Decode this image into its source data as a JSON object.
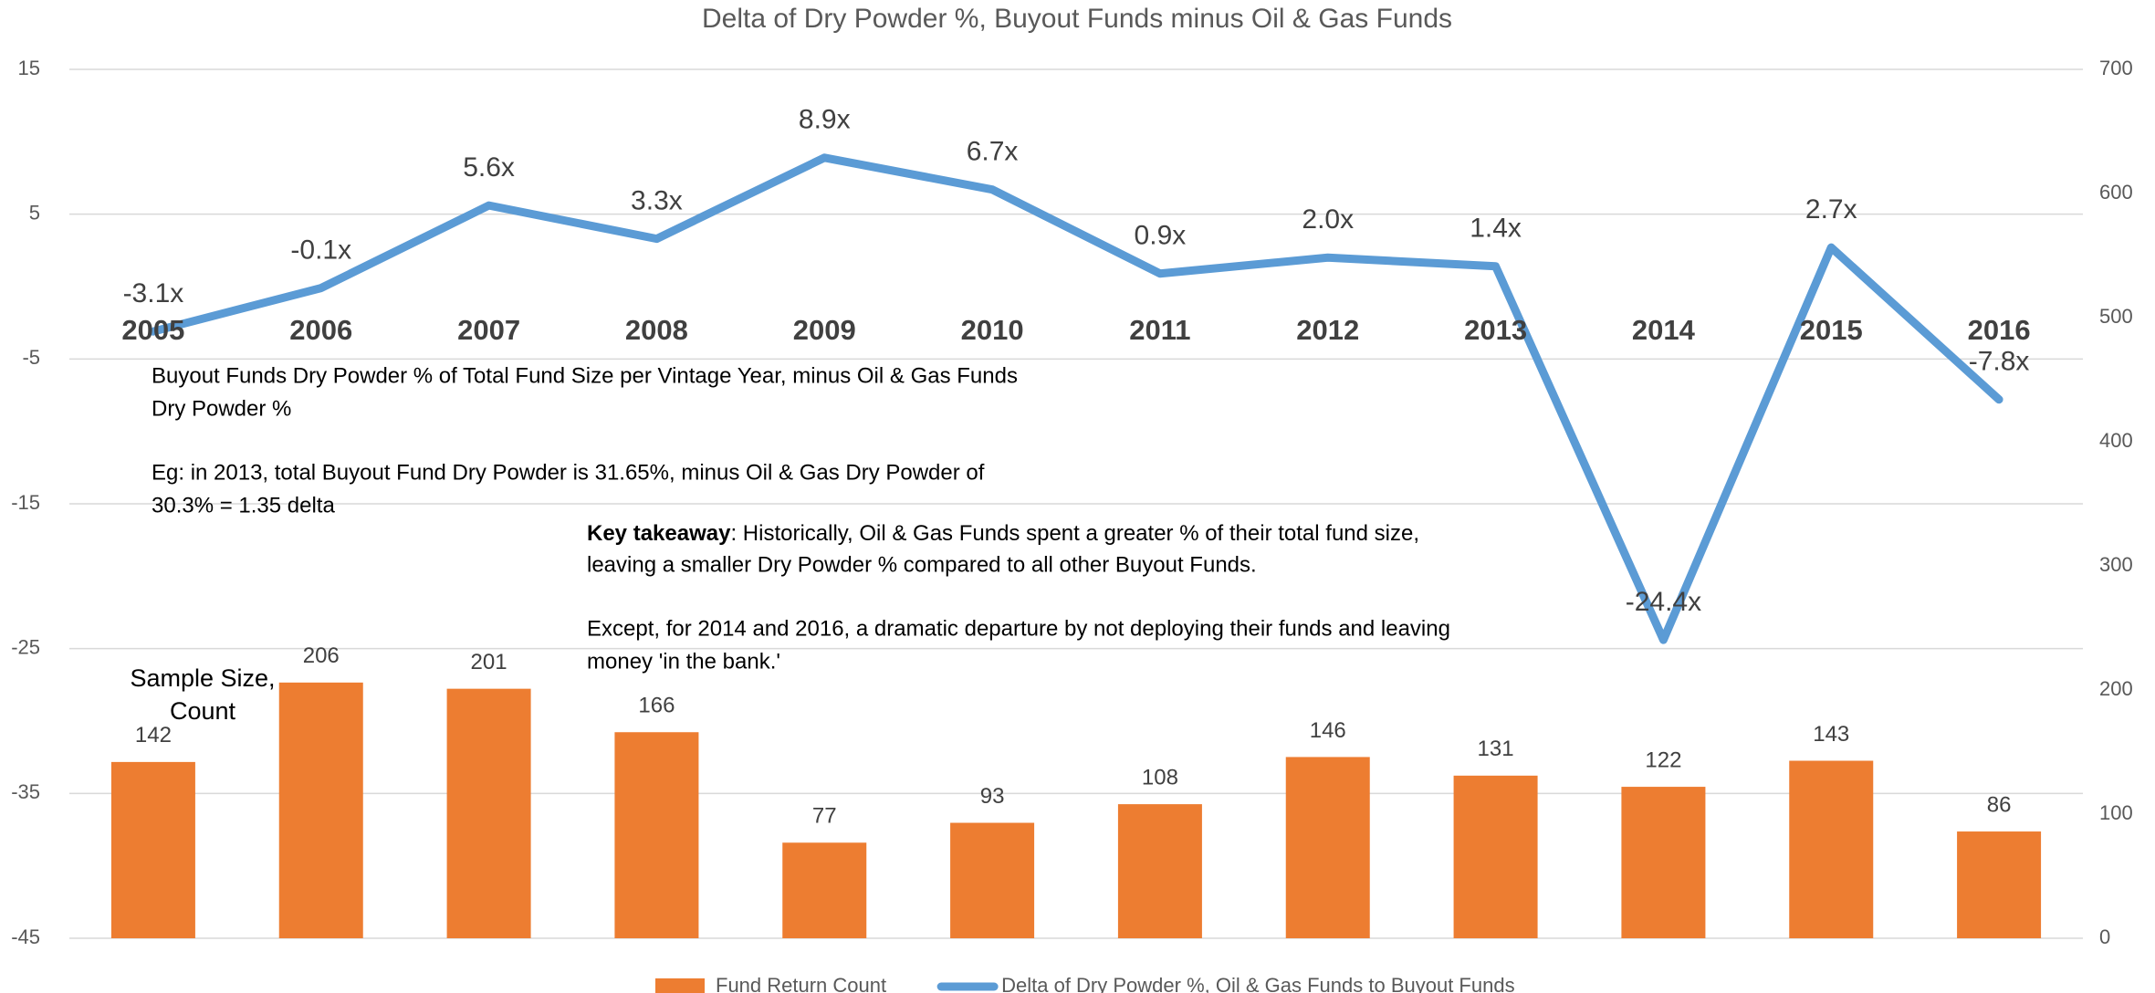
{
  "chart_data": {
    "type": "bar_line",
    "title": "Delta of Dry Powder %, Buyout Funds minus Oil & Gas Funds",
    "categories": [
      "2005",
      "2006",
      "2007",
      "2008",
      "2009",
      "2010",
      "2011",
      "2012",
      "2013",
      "2014",
      "2015",
      "2016"
    ],
    "series": [
      {
        "name": "Fund Return Count",
        "type": "bar",
        "axis": "y2",
        "color": "#ed7d31",
        "values": [
          142,
          206,
          201,
          166,
          77,
          93,
          108,
          146,
          131,
          122,
          143,
          86
        ]
      },
      {
        "name": "Delta of Dry Powder %,  Oil & Gas Funds to Buyout Funds",
        "type": "line",
        "color": "#5b9bd5",
        "values": [
          -3.1,
          -0.1,
          5.6,
          3.3,
          8.9,
          6.7,
          0.9,
          2.0,
          1.4,
          -24.4,
          2.7,
          -7.8
        ],
        "value_labels": [
          "-3.1x",
          "-0.1x",
          "5.6x",
          "3.3x",
          "8.9x",
          "6.7x",
          "0.9x",
          "2.0x",
          "1.4x",
          "-24.4x",
          "2.7x",
          "-7.8x"
        ]
      }
    ],
    "ylim": [
      -45,
      15
    ],
    "yticks": [
      -45,
      -35,
      -25,
      -15,
      -5,
      5,
      15
    ],
    "y2lim": [
      0,
      700
    ],
    "y2ticks": [
      0,
      100,
      200,
      300,
      400,
      500,
      600,
      700
    ],
    "grid": true,
    "legend": "bottom",
    "annotations": {
      "bar_axis_note": [
        "Sample Size,",
        "Count"
      ],
      "definition": [
        "Buyout Funds Dry Powder % of Total Fund Size per Vintage Year, minus Oil & Gas Funds",
        "Dry Powder %",
        "Eg: in 2013, total Buyout Fund Dry Powder is 31.65%,  minus Oil & Gas Dry Powder of",
        "30.3% = 1.35 delta"
      ],
      "takeaway_heading": "Key takeaway",
      "takeaway": [
        ": Historically, Oil & Gas Funds spent a greater % of their total fund size,",
        "leaving a smaller Dry Powder % compared to all other Buyout Funds.",
        "Except, for 2014 and 2016, a dramatic departure by not deploying their funds and leaving",
        "money 'in the bank.'"
      ]
    }
  }
}
